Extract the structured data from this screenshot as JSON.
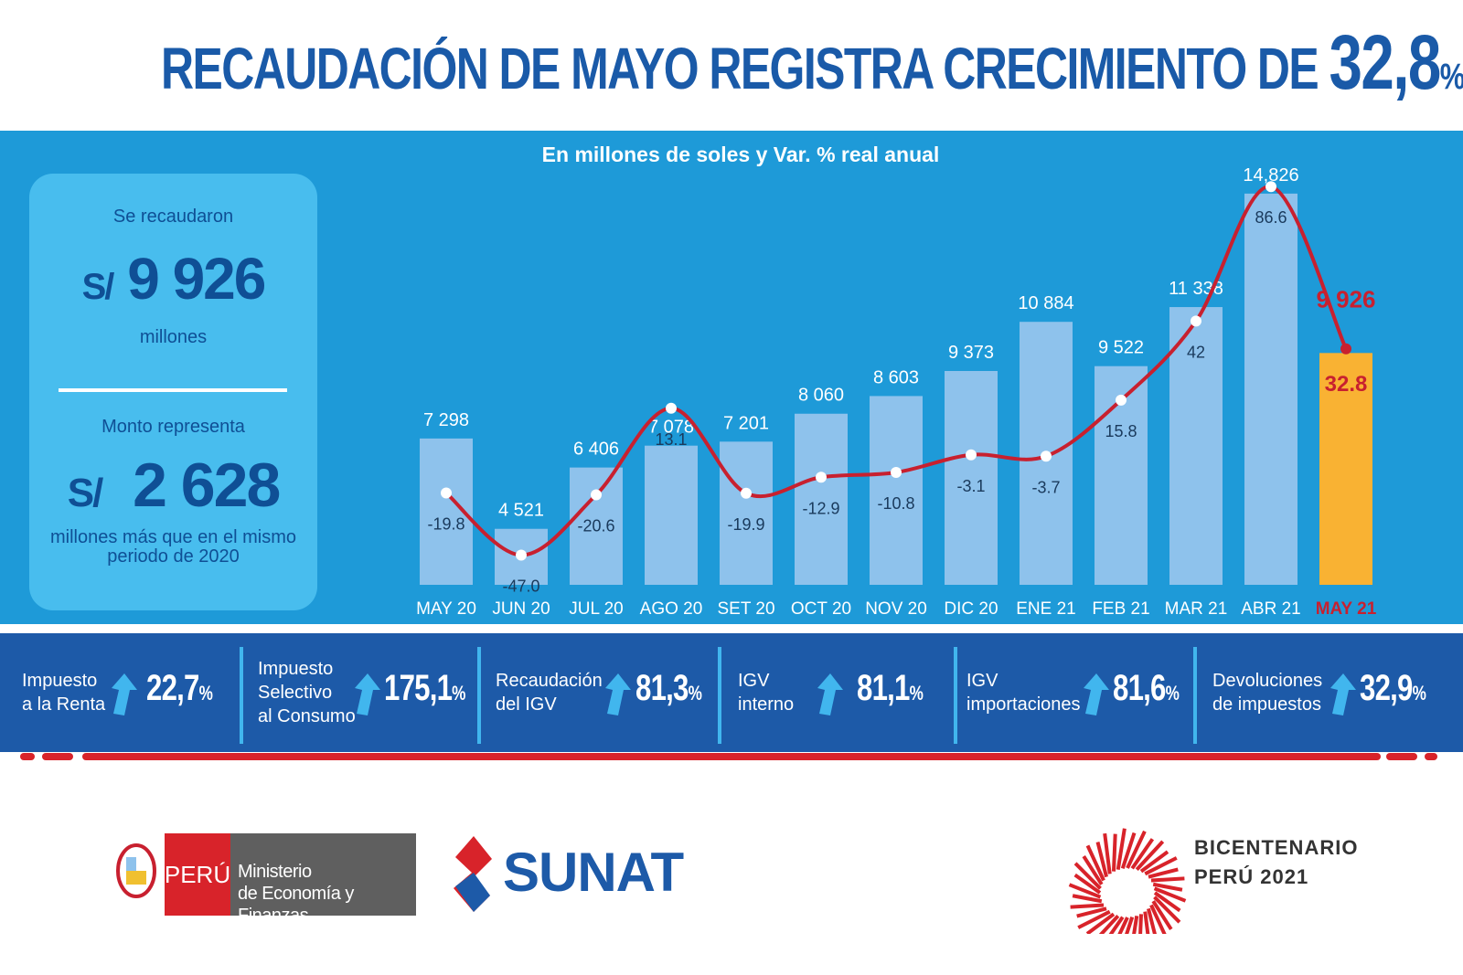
{
  "header": {
    "title_text": "RECAUDACIÓN DE MAYO REGISTRA CRECIMIENTO DE",
    "title_value": "32,8",
    "title_unit": "%"
  },
  "summary": {
    "label1": "Se recaudaron",
    "currency1": "S/",
    "amount1": "9 926",
    "unit1": "millones",
    "label2": "Monto representa",
    "currency2": "S/",
    "amount2": "2 628",
    "desc2_line1": "millones más que en el mismo",
    "desc2_line2": "periodo de 2020"
  },
  "chart_data": {
    "type": "bar",
    "title": "En millones de soles y Var. % real anual",
    "categories": [
      "MAY 20",
      "JUN 20",
      "JUL 20",
      "AGO 20",
      "SET 20",
      "OCT 20",
      "NOV 20",
      "DIC 20",
      "ENE 21",
      "FEB 21",
      "MAR 21",
      "ABR 21",
      "MAY 21"
    ],
    "series": [
      {
        "type": "bar",
        "values": [
          7298,
          4521,
          6406,
          7078,
          7201,
          8060,
          8603,
          9373,
          10884,
          9522,
          11338,
          14826,
          9926
        ],
        "labels": [
          "7 298",
          "4 521",
          "6 406",
          "7 078",
          "7 201",
          "8 060",
          "8 603",
          "9 373",
          "10 884",
          "9 522",
          "11 338",
          "14,826",
          "9 926"
        ]
      },
      {
        "type": "line",
        "values": [
          -19.8,
          -47.0,
          -20.6,
          13.1,
          -19.9,
          -12.9,
          -10.8,
          -3.1,
          -3.7,
          15.8,
          42,
          86.6,
          32.8
        ],
        "labels": [
          "-19.8",
          "-47.0",
          "-20.6",
          "13.1",
          "-19.9",
          "-12.9",
          "-10.8",
          "-3.1",
          "-3.7",
          "15.8",
          "42",
          "86.6",
          "32.8"
        ]
      }
    ],
    "colors": {
      "bar": "#8ec2ec",
      "highlight_bar": "#f9b233",
      "line": "#c8202f",
      "highlight_label": "#c8202f"
    },
    "grid": false
  },
  "indicators": [
    {
      "label": [
        "Impuesto",
        "a la Renta"
      ],
      "value": "22,7",
      "unit": "%"
    },
    {
      "label": [
        "Impuesto",
        "Selectivo",
        "al Consumo"
      ],
      "value": "175,1",
      "unit": "%"
    },
    {
      "label": [
        "Recaudación",
        "del IGV"
      ],
      "value": "81,3",
      "unit": "%"
    },
    {
      "label": [
        "IGV",
        "interno"
      ],
      "value": "81,1",
      "unit": "%"
    },
    {
      "label": [
        "IGV",
        "importaciones"
      ],
      "value": "81,6",
      "unit": "%"
    },
    {
      "label": [
        "Devoluciones",
        "de impuestos"
      ],
      "value": "32,9",
      "unit": "%"
    }
  ],
  "footer": {
    "peru": "PERÚ",
    "mef_line1": "Ministerio",
    "mef_line2": "de Economía y Finanzas",
    "sunat": "SUNAT",
    "bicentenario_line1": "BICENTENARIO",
    "bicentenario_line2": "PERÚ 2021"
  }
}
